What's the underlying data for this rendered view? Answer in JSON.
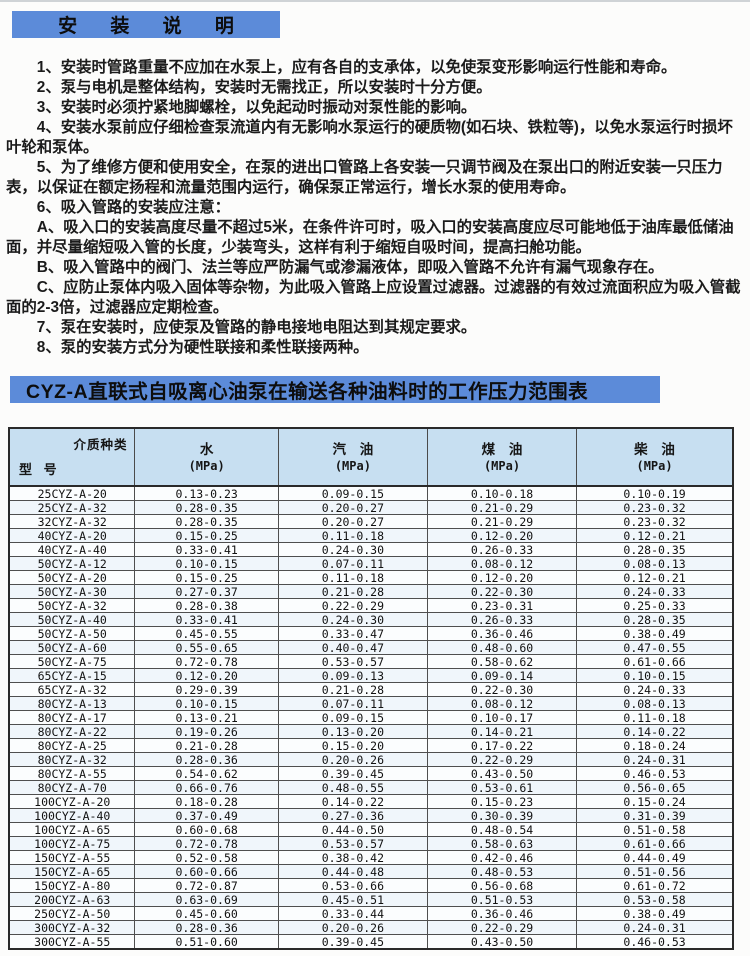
{
  "colors": {
    "banner_blue": "#5c8bd9",
    "table_header_blue": "#c7dff1"
  },
  "install": {
    "title": "安 装 说 明",
    "items": [
      "1、安装时管路重量不应加在水泵上，应有各自的支承体，以免使泵变形影响运行性能和寿命。",
      "2、泵与电机是整体结构，安装时无需找正，所以安装时十分方便。",
      "3、安装时必须拧紧地脚螺栓，以免起动时振动对泵性能的影响。",
      "4、安装水泵前应仔细检查泵流道内有无影响水泵运行的硬质物(如石块、铁粒等)，以免水泵运行时损坏叶轮和泵体。",
      "5、为了维修方便和使用安全，在泵的进出口管路上各安装一只调节阀及在泵出口的附近安装一只压力表，以保证在额定扬程和流量范围内运行，确保泵正常运行，增长水泵的使用寿命。",
      "6、吸入管路的安装应注意：",
      "A、吸入口的安装高度尽量不超过5米，在条件许可时，吸入口的安装高度应尽可能地低于油库最低储油面，并尽量缩短吸入管的长度，少装弯头，这样有利于缩短自吸时间，提高扫舱功能。",
      "B、吸入管路中的阀门、法兰等应严防漏气或渗漏液体，即吸入管路不允许有漏气现象存在。",
      "C、应防止泵体内吸入固体等杂物，为此吸入管路上应设置过滤器。过滤器的有效过流面积应为吸入管截面的2-3倍，过滤器应定期检查。",
      "7、泵在安装时，应使泵及管路的静电接地电阻达到其规定要求。",
      "8、泵的安装方式分为硬性联接和柔性联接两种。"
    ]
  },
  "pressure_section": {
    "title": "CYZ-A直联式自吸离心油泵在输送各种油料时的工作压力范围表",
    "corner": {
      "media_label": "介质种类",
      "model_label": "型 号"
    },
    "columns": [
      {
        "name": "水",
        "unit": "(MPa)"
      },
      {
        "name": "汽 油",
        "unit": "(MPa)"
      },
      {
        "name": "煤 油",
        "unit": "(MPa)"
      },
      {
        "name": "柴 油",
        "unit": "(MPa)"
      }
    ],
    "rows": [
      [
        "25CYZ-A-20",
        "0.13-0.23",
        "0.09-0.15",
        "0.10-0.18",
        "0.10-0.19"
      ],
      [
        "25CYZ-A-32",
        "0.28-0.35",
        "0.20-0.27",
        "0.21-0.29",
        "0.23-0.32"
      ],
      [
        "32CYZ-A-32",
        "0.28-0.35",
        "0.20-0.27",
        "0.21-0.29",
        "0.23-0.32"
      ],
      [
        "40CYZ-A-20",
        "0.15-0.25",
        "0.11-0.18",
        "0.12-0.20",
        "0.12-0.21"
      ],
      [
        "40CYZ-A-40",
        "0.33-0.41",
        "0.24-0.30",
        "0.26-0.33",
        "0.28-0.35"
      ],
      [
        "50CYZ-A-12",
        "0.10-0.15",
        "0.07-0.11",
        "0.08-0.12",
        "0.08-0.13"
      ],
      [
        "50CYZ-A-20",
        "0.15-0.25",
        "0.11-0.18",
        "0.12-0.20",
        "0.12-0.21"
      ],
      [
        "50CYZ-A-30",
        "0.27-0.37",
        "0.21-0.28",
        "0.22-0.30",
        "0.24-0.33"
      ],
      [
        "50CYZ-A-32",
        "0.28-0.38",
        "0.22-0.29",
        "0.23-0.31",
        "0.25-0.33"
      ],
      [
        "50CYZ-A-40",
        "0.33-0.41",
        "0.24-0.30",
        "0.26-0.33",
        "0.28-0.35"
      ],
      [
        "50CYZ-A-50",
        "0.45-0.55",
        "0.33-0.47",
        "0.36-0.46",
        "0.38-0.49"
      ],
      [
        "50CYZ-A-60",
        "0.55-0.65",
        "0.40-0.47",
        "0.48-0.60",
        "0.47-0.55"
      ],
      [
        "50CYZ-A-75",
        "0.72-0.78",
        "0.53-0.57",
        "0.58-0.62",
        "0.61-0.66"
      ],
      [
        "65CYZ-A-15",
        "0.12-0.20",
        "0.09-0.13",
        "0.09-0.14",
        "0.10-0.15"
      ],
      [
        "65CYZ-A-32",
        "0.29-0.39",
        "0.21-0.28",
        "0.22-0.30",
        "0.24-0.33"
      ],
      [
        "80CYZ-A-13",
        "0.10-0.15",
        "0.07-0.11",
        "0.08-0.12",
        "0.08-0.13"
      ],
      [
        "80CYZ-A-17",
        "0.13-0.21",
        "0.09-0.15",
        "0.10-0.17",
        "0.11-0.18"
      ],
      [
        "80CYZ-A-22",
        "0.19-0.26",
        "0.13-0.20",
        "0.14-0.21",
        "0.14-0.22"
      ],
      [
        "80CYZ-A-25",
        "0.21-0.28",
        "0.15-0.20",
        "0.17-0.22",
        "0.18-0.24"
      ],
      [
        "80CYZ-A-32",
        "0.28-0.36",
        "0.20-0.26",
        "0.22-0.29",
        "0.24-0.31"
      ],
      [
        "80CYZ-A-55",
        "0.54-0.62",
        "0.39-0.45",
        "0.43-0.50",
        "0.46-0.53"
      ],
      [
        "80CYZ-A-70",
        "0.66-0.76",
        "0.48-0.55",
        "0.53-0.61",
        "0.56-0.65"
      ],
      [
        "100CYZ-A-20",
        "0.18-0.28",
        "0.14-0.22",
        "0.15-0.23",
        "0.15-0.24"
      ],
      [
        "100CYZ-A-40",
        "0.37-0.49",
        "0.27-0.36",
        "0.30-0.39",
        "0.31-0.39"
      ],
      [
        "100CYZ-A-65",
        "0.60-0.68",
        "0.44-0.50",
        "0.48-0.54",
        "0.51-0.58"
      ],
      [
        "100CYZ-A-75",
        "0.72-0.78",
        "0.53-0.57",
        "0.58-0.63",
        "0.61-0.66"
      ],
      [
        "150CYZ-A-55",
        "0.52-0.58",
        "0.38-0.42",
        "0.42-0.46",
        "0.44-0.49"
      ],
      [
        "150CYZ-A-65",
        "0.60-0.66",
        "0.44-0.48",
        "0.48-0.53",
        "0.51-0.56"
      ],
      [
        "150CYZ-A-80",
        "0.72-0.87",
        "0.53-0.66",
        "0.56-0.68",
        "0.61-0.72"
      ],
      [
        "200CYZ-A-63",
        "0.63-0.69",
        "0.45-0.51",
        "0.51-0.53",
        "0.53-0.58"
      ],
      [
        "250CYZ-A-50",
        "0.45-0.60",
        "0.33-0.44",
        "0.36-0.46",
        "0.38-0.49"
      ],
      [
        "300CYZ-A-32",
        "0.28-0.36",
        "0.20-0.26",
        "0.22-0.29",
        "0.24-0.31"
      ],
      [
        "300CYZ-A-55",
        "0.51-0.60",
        "0.39-0.45",
        "0.43-0.50",
        "0.46-0.53"
      ]
    ]
  }
}
